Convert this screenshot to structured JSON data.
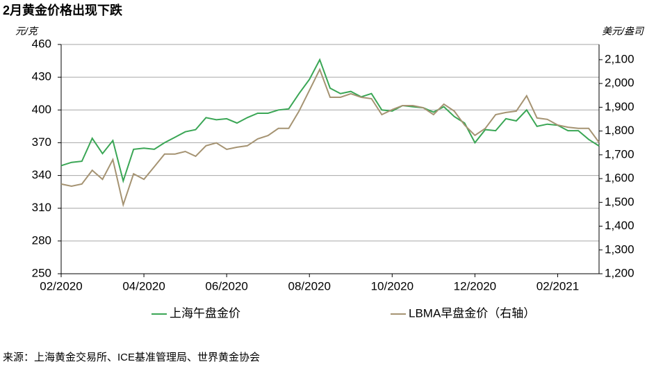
{
  "chart_data": {
    "type": "line",
    "title": "2月黄金价格出现下跌",
    "ylabel": "元/克",
    "y2label": "美元/盎司",
    "source": "来源：上海黄金交易所、ICE基准管理局、世界黄金协会",
    "categories": [
      "02/2020",
      null,
      null,
      null,
      null,
      null,
      null,
      null,
      "04/2020",
      null,
      null,
      null,
      null,
      null,
      null,
      null,
      "06/2020",
      null,
      null,
      null,
      null,
      null,
      null,
      null,
      "08/2020",
      null,
      null,
      null,
      null,
      null,
      null,
      null,
      "10/2020",
      null,
      null,
      null,
      null,
      null,
      null,
      null,
      "12/2020",
      null,
      null,
      null,
      null,
      null,
      null,
      null,
      "02/2021",
      null,
      null,
      null,
      null
    ],
    "ylim": [
      250,
      460
    ],
    "yticks": [
      250,
      280,
      310,
      340,
      370,
      400,
      430,
      460
    ],
    "y2lim": [
      1200,
      2164
    ],
    "y2ticks": [
      {
        "value": 1200,
        "label": "1,200"
      },
      {
        "value": 1300,
        "label": "1,300"
      },
      {
        "value": 1400,
        "label": "1,400"
      },
      {
        "value": 1500,
        "label": "1,500"
      },
      {
        "value": 1600,
        "label": "1,600"
      },
      {
        "value": 1700,
        "label": "1,700"
      },
      {
        "value": 1800,
        "label": "1,800"
      },
      {
        "value": 1900,
        "label": "1,900"
      },
      {
        "value": 2000,
        "label": "2,000"
      },
      {
        "value": 2100,
        "label": "2,100"
      }
    ],
    "grid": true,
    "legend": "bottom",
    "series": [
      {
        "name": "上海午盘金价",
        "color": "#3aa655",
        "values": [
          349,
          352,
          353,
          374,
          360,
          372,
          335,
          364,
          365,
          364,
          370,
          375,
          380,
          382,
          393,
          391,
          392,
          388,
          393,
          397,
          397,
          400,
          401,
          415,
          428,
          446,
          420,
          415,
          417,
          412,
          415,
          400,
          399,
          404,
          403,
          402,
          398,
          403,
          394,
          388,
          370,
          382,
          381,
          392,
          390,
          400,
          385,
          387,
          386,
          381,
          381,
          373,
          367
        ]
      },
      {
        "name": "LBMA早盘金价（右轴）",
        "color": "#a59372",
        "axis": "y2",
        "values": [
          1577,
          1568,
          1577,
          1635,
          1597,
          1680,
          1490,
          1620,
          1597,
          1650,
          1703,
          1703,
          1714,
          1694,
          1738,
          1750,
          1723,
          1732,
          1738,
          1767,
          1781,
          1811,
          1811,
          1884,
          1971,
          2059,
          1942,
          1942,
          1957,
          1942,
          1936,
          1869,
          1890,
          1907,
          1907,
          1898,
          1869,
          1913,
          1884,
          1825,
          1782,
          1811,
          1869,
          1878,
          1884,
          1948,
          1855,
          1849,
          1825,
          1816,
          1811,
          1811,
          1752
        ]
      }
    ]
  }
}
